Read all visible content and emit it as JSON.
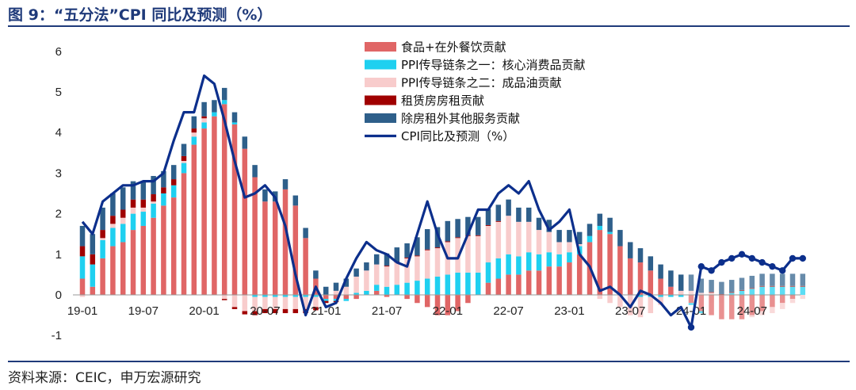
{
  "title": "图 9：“五分法”CPI 同比及预测（%）",
  "source": "资料来源：CEIC，申万宏源研究",
  "chart_data": {
    "type": "bar",
    "stacked": true,
    "x_start": "2019-01",
    "x_end": "2024-12",
    "x_tick_labels": [
      "19-01",
      "19-07",
      "20-01",
      "20-07",
      "21-01",
      "21-07",
      "22-01",
      "22-07",
      "23-01",
      "23-07",
      "24-01",
      "24-07"
    ],
    "y_ticks": [
      "-1",
      "0",
      "1",
      "2",
      "3",
      "4",
      "5",
      "6"
    ],
    "ylim": [
      -1.1,
      6.2
    ],
    "legend_position": "top-center",
    "forecast_from": "2024-01",
    "series": [
      {
        "name": "食品+在外餐饮贡献",
        "color": "#e06666",
        "values": [
          0.4,
          0.2,
          0.9,
          1.2,
          1.3,
          1.6,
          1.7,
          1.9,
          2.2,
          2.4,
          3.0,
          3.7,
          4.1,
          4.4,
          4.7,
          4.2,
          3.6,
          2.9,
          2.3,
          2.3,
          2.6,
          2.2,
          1.4,
          0.4,
          -0.1,
          -0.1,
          -0.1,
          -0.1,
          0.0,
          0.1,
          -0.05,
          0.0,
          -0.1,
          -0.2,
          -0.3,
          -0.5,
          -0.5,
          -0.4,
          -0.2,
          0.0,
          0.3,
          0.4,
          0.5,
          0.5,
          0.6,
          0.6,
          0.7,
          0.7,
          0.8,
          1.0,
          1.3,
          1.6,
          1.5,
          1.2,
          0.9,
          0.8,
          0.6,
          0.4,
          0.2,
          0.0,
          -0.2,
          -0.4,
          -0.5,
          -0.6,
          -0.6,
          -0.6,
          -0.5,
          -0.4,
          -0.3,
          -0.2,
          -0.1,
          0.0
        ]
      },
      {
        "name": "PPI传导链条之一：核心消费品贡献",
        "color": "#1fd0f0",
        "values": [
          0.55,
          0.55,
          0.45,
          0.45,
          0.45,
          0.4,
          0.35,
          0.35,
          0.3,
          0.3,
          0.25,
          0.2,
          0.15,
          0.1,
          0.1,
          0.05,
          0.0,
          -0.05,
          -0.05,
          -0.05,
          -0.05,
          -0.05,
          -0.05,
          -0.05,
          -0.05,
          -0.05,
          -0.05,
          0.05,
          0.1,
          0.15,
          0.2,
          0.25,
          0.3,
          0.35,
          0.4,
          0.45,
          0.5,
          0.55,
          0.55,
          0.55,
          0.5,
          0.5,
          0.5,
          0.45,
          0.45,
          0.4,
          0.35,
          0.3,
          0.25,
          0.2,
          0.15,
          0.1,
          0.05,
          0.0,
          0.0,
          -0.05,
          -0.05,
          -0.05,
          -0.05,
          -0.05,
          -0.05,
          -0.05,
          0.0,
          0.0,
          0.05,
          0.1,
          0.15,
          0.2,
          0.2,
          0.2,
          0.2,
          0.2
        ]
      },
      {
        "name": "PPI传导链条之二：成品油贡献",
        "color": "#f8cccc",
        "values": [
          -0.05,
          0.0,
          0.05,
          0.1,
          0.15,
          0.15,
          0.1,
          0.05,
          0.0,
          0.0,
          0.05,
          0.1,
          0.1,
          0.0,
          -0.1,
          -0.3,
          -0.4,
          -0.35,
          -0.3,
          -0.3,
          -0.3,
          -0.3,
          -0.3,
          -0.25,
          0.0,
          0.1,
          0.2,
          0.4,
          0.5,
          0.5,
          0.5,
          0.55,
          0.6,
          0.6,
          0.7,
          0.7,
          0.8,
          0.85,
          0.9,
          0.9,
          0.9,
          0.9,
          0.95,
          0.85,
          0.75,
          0.6,
          0.5,
          0.3,
          0.25,
          0.05,
          0.0,
          -0.1,
          -0.2,
          -0.3,
          -0.5,
          -0.5,
          -0.4,
          -0.2,
          0.0,
          0.1,
          0.1,
          0.05,
          0.05,
          0.0,
          0.0,
          0.0,
          -0.05,
          -0.1,
          -0.15,
          -0.15,
          -0.1,
          -0.1
        ]
      },
      {
        "name": "租赁房房租贡献",
        "color": "#a00000",
        "values": [
          0.25,
          0.25,
          0.2,
          0.2,
          0.2,
          0.2,
          0.2,
          0.18,
          0.15,
          0.15,
          0.12,
          0.1,
          0.05,
          0.0,
          -0.03,
          -0.05,
          -0.08,
          -0.1,
          -0.1,
          -0.1,
          -0.1,
          -0.1,
          -0.1,
          -0.08,
          -0.05,
          -0.03,
          0.0,
          0.0,
          0.0,
          0.0,
          0.02,
          0.02,
          0.02,
          0.02,
          0.02,
          0.02,
          0.02,
          0.02,
          0.02,
          0.02,
          0.02,
          0.02,
          0.0,
          0.0,
          0.0,
          0.0,
          0.0,
          0.0,
          0.0,
          0.0,
          0.0,
          0.0,
          0.0,
          0.0,
          0.0,
          0.0,
          0.0,
          0.0,
          0.0,
          0.0,
          0.0,
          0.0,
          0.02,
          0.02,
          0.02,
          0.02,
          0.02,
          0.02,
          0.02,
          0.02,
          0.02,
          0.02
        ]
      },
      {
        "name": "除房租外其他服务贡献",
        "color": "#2e5f8a",
        "values": [
          0.5,
          0.5,
          0.55,
          0.55,
          0.55,
          0.45,
          0.45,
          0.45,
          0.4,
          0.35,
          0.3,
          0.3,
          0.35,
          0.3,
          0.3,
          0.25,
          0.3,
          0.3,
          0.3,
          0.25,
          0.25,
          0.25,
          0.25,
          0.2,
          0.2,
          0.2,
          0.2,
          0.2,
          0.2,
          0.25,
          0.3,
          0.35,
          0.35,
          0.45,
          0.5,
          0.5,
          0.5,
          0.45,
          0.45,
          0.45,
          0.4,
          0.4,
          0.4,
          0.35,
          0.35,
          0.3,
          0.3,
          0.3,
          0.3,
          0.3,
          0.3,
          0.3,
          0.35,
          0.4,
          0.4,
          0.35,
          0.35,
          0.35,
          0.4,
          0.4,
          0.4,
          0.35,
          0.3,
          0.3,
          0.3,
          0.3,
          0.3,
          0.3,
          0.3,
          0.3,
          0.3,
          0.3
        ]
      },
      {
        "name": "CPI同比及预测（%）",
        "color": "#0c2f8c",
        "type": "line",
        "values": [
          1.8,
          1.5,
          2.3,
          2.5,
          2.7,
          2.7,
          2.8,
          2.8,
          3.0,
          3.8,
          4.5,
          4.5,
          5.4,
          5.2,
          4.3,
          3.3,
          2.4,
          2.5,
          2.7,
          2.4,
          1.7,
          0.5,
          -0.5,
          0.2,
          -0.3,
          -0.2,
          0.4,
          0.9,
          1.3,
          1.1,
          1.0,
          0.8,
          0.7,
          1.5,
          2.3,
          1.5,
          0.9,
          0.9,
          1.5,
          2.1,
          2.1,
          2.5,
          2.7,
          2.5,
          2.8,
          2.1,
          1.6,
          1.8,
          2.1,
          1.0,
          0.7,
          0.1,
          0.2,
          0.0,
          -0.3,
          0.1,
          0.0,
          -0.2,
          -0.5,
          -0.3,
          -0.8,
          0.7,
          0.6,
          0.8,
          0.9,
          1.0,
          0.9,
          0.8,
          0.7,
          0.6,
          0.9,
          0.9
        ]
      }
    ]
  }
}
